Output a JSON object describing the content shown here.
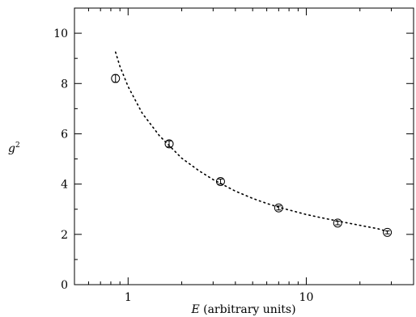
{
  "chart_data": {
    "type": "scatter",
    "xscale": "log",
    "xlim": [
      0.5,
      40
    ],
    "ylim": [
      0,
      11
    ],
    "xticks_major": [
      1,
      10
    ],
    "yticks": [
      0,
      2,
      4,
      6,
      8,
      10
    ],
    "ytick_labels": [
      "0",
      "2",
      "4",
      "6",
      "8",
      "10"
    ],
    "xtick_labels": [
      "1",
      "10"
    ],
    "xlabel_var": "E",
    "xlabel_rest": " (arbitrary units)",
    "ylabel_base": "g",
    "ylabel_sup": "2",
    "grid": false,
    "series": [
      {
        "kind": "points-with-errorbars",
        "marker": "open-circle",
        "x": [
          0.85,
          1.7,
          3.3,
          7.0,
          15.0,
          28.5
        ],
        "y": [
          8.2,
          5.6,
          4.1,
          3.05,
          2.45,
          2.08
        ],
        "yerr": [
          0.15,
          0.12,
          0.1,
          0.08,
          0.07,
          0.06
        ]
      },
      {
        "kind": "fit-curve",
        "style": "dotted",
        "x": [
          0.85,
          0.9,
          1.0,
          1.2,
          1.5,
          2.0,
          2.5,
          3.0,
          4.0,
          5.0,
          6.0,
          7.0,
          8.0,
          10.0,
          12.0,
          15.0,
          20.0,
          25.0,
          28.5
        ],
        "y": [
          9.25,
          8.68,
          7.88,
          6.82,
          5.92,
          5.03,
          4.53,
          4.18,
          3.72,
          3.43,
          3.23,
          3.08,
          2.97,
          2.79,
          2.67,
          2.53,
          2.36,
          2.23,
          2.12
        ]
      }
    ]
  }
}
